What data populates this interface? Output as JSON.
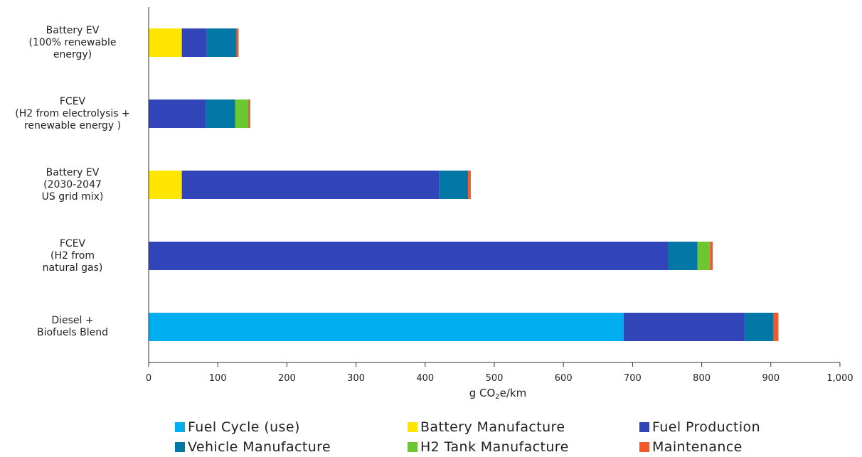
{
  "chart_data": {
    "type": "bar",
    "orientation": "horizontal",
    "stacked": true,
    "xlabel": "g CO2e/km",
    "xlabel_parts": {
      "prefix": "g CO",
      "sub": "2",
      "suffix": "e/km"
    },
    "xlim": [
      0,
      1000
    ],
    "xticks": [
      "0",
      "100",
      "200",
      "300",
      "400",
      "500",
      "600",
      "700",
      "800",
      "900",
      "1,000"
    ],
    "grid": false,
    "legend_position": "bottom",
    "categories": [
      {
        "lines": [
          "Battery EV",
          "(100% renewable",
          "energy)"
        ]
      },
      {
        "lines": [
          "FCEV",
          "(H2 from electrolysis +",
          "renewable energy )"
        ]
      },
      {
        "lines": [
          "Battery EV",
          "(2030-2047",
          "US grid mix)"
        ]
      },
      {
        "lines": [
          "FCEV",
          "(H2 from",
          "natural gas)"
        ]
      },
      {
        "lines": [
          "Diesel +",
          "Biofuels Blend"
        ]
      }
    ],
    "series": [
      {
        "name": "Fuel Cycle (use)",
        "color": "#00aeef",
        "values": [
          0,
          0,
          0,
          0,
          687
        ]
      },
      {
        "name": "Battery Manufacture",
        "color": "#ffe600",
        "values": [
          48,
          0,
          48,
          0,
          0
        ]
      },
      {
        "name": "Fuel Production",
        "color": "#3144b8",
        "values": [
          36,
          83,
          372,
          752,
          175
        ]
      },
      {
        "name": "Vehicle Manufacture",
        "color": "#0377a6",
        "values": [
          43,
          42,
          42,
          42,
          42
        ]
      },
      {
        "name": "H2 Tank Manufacture",
        "color": "#6cc832",
        "values": [
          0,
          19,
          0,
          18,
          0
        ]
      },
      {
        "name": "Maintenance",
        "color": "#f25a2b",
        "values": [
          3,
          3,
          4,
          4,
          7
        ]
      }
    ]
  }
}
